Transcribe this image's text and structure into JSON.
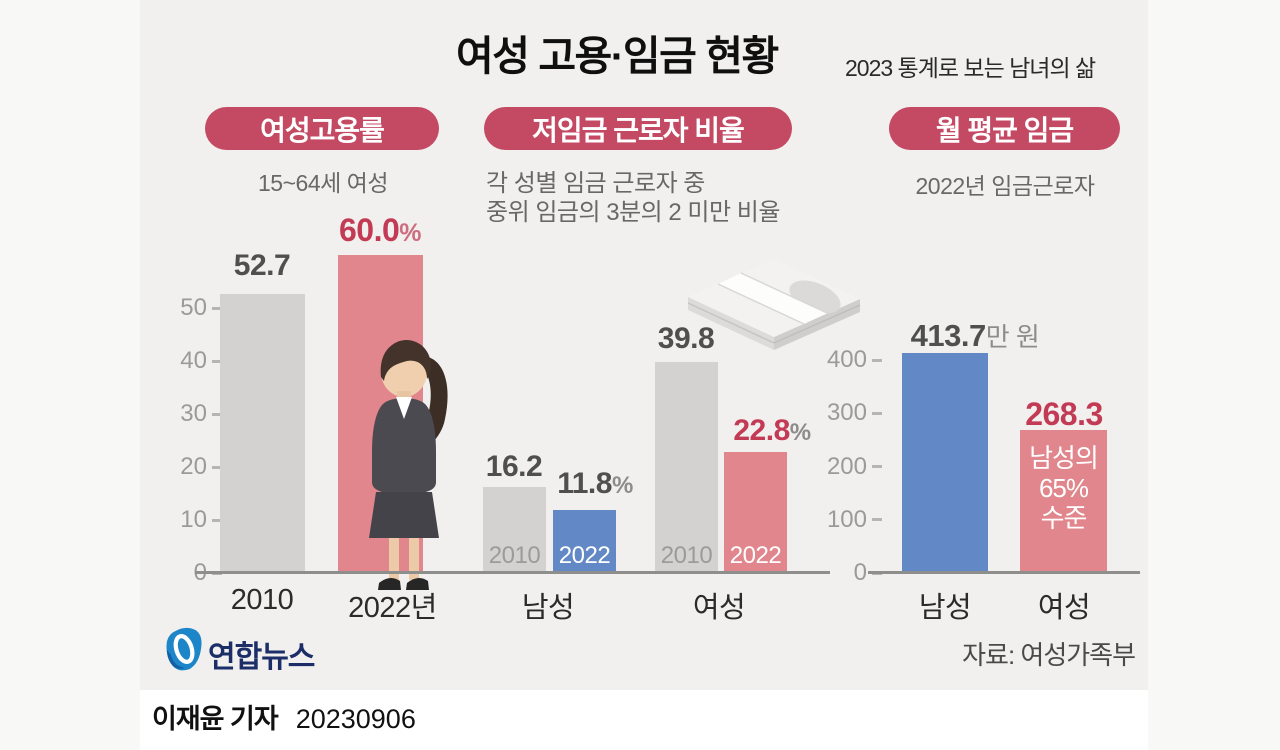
{
  "header": {
    "title": "여성 고용·임금 현황",
    "subtitle": "2023 통계로 보는 남녀의 삶"
  },
  "sections": [
    {
      "badge": "여성고용률",
      "sub1": "15~64세 여성"
    },
    {
      "badge": "저임금 근로자 비율",
      "sub1": "각 성별 임금 근로자 중",
      "sub2": "중위 임금의 3분의 2 미만 비율"
    },
    {
      "badge": "월 평균 임금",
      "sub1": "2022년 임금근로자"
    }
  ],
  "chart_data": [
    {
      "type": "bar",
      "title": "여성고용률",
      "subtitle": "15~64세 여성",
      "unit": "%",
      "categories": [
        "2010",
        "2022년"
      ],
      "values": [
        52.7,
        60.0
      ],
      "value_labels": [
        {
          "text": "52.7",
          "suffix": ""
        },
        {
          "text": "60.0",
          "suffix": "%"
        }
      ],
      "yticks": [
        0,
        10,
        20,
        30,
        40,
        50
      ],
      "ylim": [
        0,
        63
      ],
      "grid": false,
      "colors": [
        "#d3d2d0",
        "#e0868c"
      ]
    },
    {
      "type": "bar",
      "title": "저임금 근로자 비율",
      "subtitle": "각 성별 임금 근로자 중 중위 임금의 3분의 2 미만 비율",
      "unit": "%",
      "ylim": [
        0,
        45
      ],
      "grid": false,
      "groups": [
        {
          "label": "남성",
          "bars": [
            {
              "year": "2010",
              "value": 16.2,
              "label": {
                "text": "16.2",
                "suffix": ""
              },
              "color": "#d3d2d0"
            },
            {
              "year": "2022",
              "value": 11.8,
              "label": {
                "text": "11.8",
                "suffix": "%"
              },
              "color": "#6289c6"
            }
          ]
        },
        {
          "label": "여성",
          "bars": [
            {
              "year": "2010",
              "value": 39.8,
              "label": {
                "text": "39.8",
                "suffix": ""
              },
              "color": "#d3d2d0"
            },
            {
              "year": "2022",
              "value": 22.8,
              "label": {
                "text": "22.8",
                "suffix": "%"
              },
              "color": "#e0868c"
            }
          ]
        }
      ]
    },
    {
      "type": "bar",
      "title": "월 평균 임금",
      "subtitle": "2022년 임금근로자",
      "unit": "만 원",
      "categories": [
        "남성",
        "여성"
      ],
      "values": [
        413.7,
        268.3
      ],
      "value_labels": [
        {
          "text": "413.7",
          "suffix": "만 원"
        },
        {
          "text": "268.3",
          "suffix": ""
        }
      ],
      "yticks": [
        0,
        100,
        200,
        300,
        400
      ],
      "ylim": [
        0,
        430
      ],
      "grid": false,
      "colors": [
        "#6289c6",
        "#e0868c"
      ],
      "annotation_lines": [
        "남성의",
        "65%",
        "수준"
      ]
    }
  ],
  "logo": {
    "name": "연합뉴스"
  },
  "source": "자료: 여성가족부",
  "footer": {
    "reporter": "이재윤 기자",
    "date": "20230906"
  },
  "colors": {
    "crimson_badge": "#c44a64",
    "crimson_text": "#c23a54",
    "rose_bar": "#e0868c",
    "blue_bar": "#6289c6",
    "gray_bar": "#d3d2d0",
    "panel_bg": "#f1f0ee",
    "outer_bg": "#f8f8f7",
    "footer_bg": "#ffffff"
  }
}
